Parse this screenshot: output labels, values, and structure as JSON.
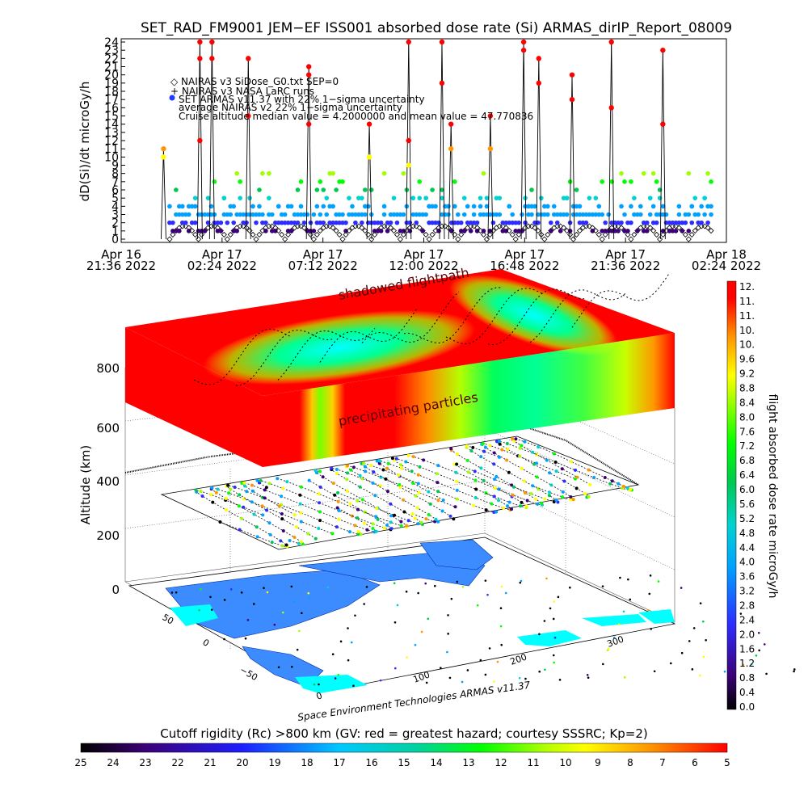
{
  "title": "SET_RAD_FM9001  JEM−EF ISS001 absorbed dose rate (Si) ARMAS_dirIP_Report_08009",
  "chart_data": [
    {
      "type": "scatter",
      "ylabel": "dD(Si)/dt microGy/h",
      "ylim": [
        0,
        24
      ],
      "y_ticks": [
        "0",
        "1",
        "2",
        "3",
        "4",
        "5",
        "6",
        "7",
        "8",
        "9",
        "10",
        "11",
        "12",
        "13",
        "14",
        "15",
        "16",
        "17",
        "18",
        "19",
        "20",
        "21",
        "22",
        "23",
        "24"
      ],
      "x_ticks": [
        {
          "line1": "Apr 16",
          "line2": "21:36 2022"
        },
        {
          "line1": "Apr 17",
          "line2": "02:24 2022"
        },
        {
          "line1": "Apr 17",
          "line2": "07:12 2022"
        },
        {
          "line1": "Apr 17",
          "line2": "12:00 2022"
        },
        {
          "line1": "Apr 17",
          "line2": "16:48 2022"
        },
        {
          "line1": "Apr 17",
          "line2": "21:36 2022"
        },
        {
          "line1": "Apr 18",
          "line2": "02:24 2022"
        }
      ],
      "legend": [
        "◇ NAIRAS v3 SiDose_G0.txt SEP=0",
        "+ NAIRAS v3 NASA LaRC runs",
        "SET ARMAS v11.37 with 22% 1−sigma uncertainty",
        "average NAIRAS v2 22% 1−sigma uncertainty",
        "Cruise altitude median value = 4.2000000 and mean value = 47.770836"
      ],
      "legend_placement": "top-left",
      "series": [
        {
          "name": "NAIRAS v3 SiDose_G0.txt SEP=0",
          "marker": "diamond",
          "color": "#000000",
          "values_desc": [
            0,
            2
          ]
        },
        {
          "name": "SET ARMAS v11.37 with 22% 1−sigma uncertainty",
          "marker": "dot",
          "color": "#1e3cff",
          "values_desc": [
            0,
            24
          ]
        }
      ],
      "spikes": [
        {
          "x": 0.07,
          "peaks": [
            11,
            10
          ]
        },
        {
          "x": 0.13,
          "peaks": [
            24,
            22,
            12
          ]
        },
        {
          "x": 0.15,
          "peaks": [
            24,
            22
          ]
        },
        {
          "x": 0.21,
          "peaks": [
            22,
            15
          ]
        },
        {
          "x": 0.31,
          "peaks": [
            21,
            20,
            14
          ]
        },
        {
          "x": 0.41,
          "peaks": [
            14,
            10
          ]
        },
        {
          "x": 0.475,
          "peaks": [
            24,
            12,
            9
          ]
        },
        {
          "x": 0.53,
          "peaks": [
            24,
            19
          ]
        },
        {
          "x": 0.545,
          "peaks": [
            14,
            11
          ]
        },
        {
          "x": 0.61,
          "peaks": [
            15,
            11
          ]
        },
        {
          "x": 0.665,
          "peaks": [
            24,
            23
          ]
        },
        {
          "x": 0.69,
          "peaks": [
            22,
            19
          ]
        },
        {
          "x": 0.745,
          "peaks": [
            20,
            17
          ]
        },
        {
          "x": 0.81,
          "peaks": [
            24,
            16
          ]
        },
        {
          "x": 0.895,
          "peaks": [
            23,
            14
          ]
        }
      ]
    },
    {
      "type": "surface3d",
      "zlabel": "Altitude (km)",
      "z_ticks": [
        "0",
        "200",
        "400",
        "600",
        "800"
      ],
      "lat_ticks": [
        "50",
        "0",
        "−50"
      ],
      "lon_ticks": [
        "0",
        "100",
        "200",
        "300"
      ],
      "annotations": [
        "shadowed flightpath",
        "precipitating particles"
      ],
      "credit": "Space Environment Technologies ARMAS v11.37"
    }
  ],
  "dose_colorbar": {
    "label": "flight absorbed dose rate microGy/h",
    "ticks": [
      "0.0",
      "0.4",
      "0.8",
      "1.2",
      "1.6",
      "2.0",
      "2.4",
      "2.8",
      "3.2",
      "3.6",
      "4.0",
      "4.4",
      "4.8",
      "5.2",
      "5.6",
      "6.0",
      "6.4",
      "6.8",
      "7.2",
      "7.6",
      "8.0",
      "8.4",
      "8.8",
      "9.2",
      "9.6",
      "10.",
      "10.",
      "11.",
      "11.",
      "12."
    ]
  },
  "rigidity_colorbar": {
    "label": "Cutoff rigidity (Rc) >800 km (GV: red = greatest hazard; courtesy SSSRC; Kp=2)",
    "ticks": [
      "25",
      "24",
      "23",
      "22",
      "21",
      "20",
      "19",
      "18",
      "17",
      "16",
      "15",
      "14",
      "13",
      "12",
      "11",
      "10",
      "9",
      "8",
      "7",
      "6",
      "5"
    ]
  },
  "colors": {
    "scale": [
      "#000000",
      "#3c0078",
      "#2d2dff",
      "#00a0ff",
      "#00d2d2",
      "#00c850",
      "#00ff00",
      "#a0ff00",
      "#ffff00",
      "#ff9600",
      "#ff0000"
    ],
    "continent": "#3c8cff",
    "ocean_highlight": "#00ffff"
  }
}
